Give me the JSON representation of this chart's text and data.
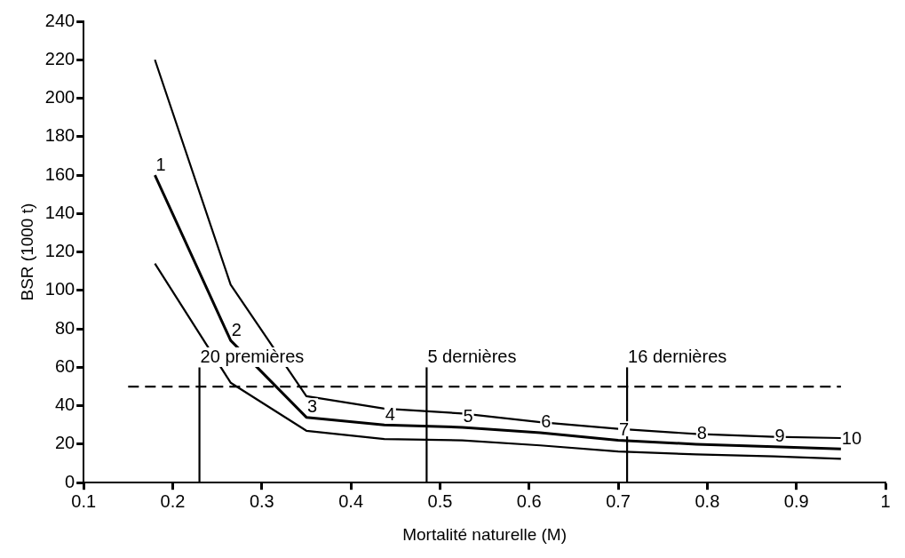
{
  "chart_data": {
    "type": "line",
    "xlabel": "Mortalité naturelle (M)",
    "ylabel": "BSR (1000 t)",
    "x": [
      0.18,
      0.265,
      0.35,
      0.4375,
      0.525,
      0.6125,
      0.7,
      0.7875,
      0.875,
      0.95
    ],
    "series": [
      {
        "color": "#000000",
        "values": [
          220,
          103,
          45,
          38.5,
          36,
          31.5,
          28,
          25.3,
          23.8,
          23.2
        ]
      },
      {
        "color": "#000000",
        "values": [
          160,
          74,
          34,
          30,
          28.8,
          26,
          22,
          20,
          18.7,
          17.5
        ]
      },
      {
        "color": "#000000",
        "values": [
          114,
          52,
          27,
          22.7,
          22,
          19.4,
          16.2,
          14.7,
          13.7,
          12.4
        ]
      },
      {
        "color": "#000000",
        "x": [
          0.15,
          0.95
        ],
        "values": [
          50,
          50
        ],
        "line_style": "dashed"
      },
      {
        "color": "#000000",
        "x": [
          0.23,
          0.23
        ],
        "values": [
          0,
          60
        ]
      },
      {
        "color": "#000000",
        "x": [
          0.485,
          0.485
        ],
        "values": [
          0,
          60
        ]
      },
      {
        "color": "#000000",
        "x": [
          0.71,
          0.71
        ],
        "values": [
          0,
          60
        ]
      }
    ],
    "annotations": [
      {
        "text": "20 premières",
        "x": 0.23,
        "y": 60
      },
      {
        "text": "5 dernières",
        "x": 0.485,
        "y": 60
      },
      {
        "text": "16 dernières",
        "x": 0.71,
        "y": 60
      },
      {
        "text": "1",
        "x": 0.18,
        "y": 160
      },
      {
        "text": "2",
        "x": 0.265,
        "y": 74
      },
      {
        "text": "3",
        "x": 0.35,
        "y": 34
      },
      {
        "text": "4",
        "x": 0.4375,
        "y": 30
      },
      {
        "text": "5",
        "x": 0.525,
        "y": 28.8
      },
      {
        "text": "6",
        "x": 0.6125,
        "y": 26
      },
      {
        "text": "7",
        "x": 0.7,
        "y": 22
      },
      {
        "text": "8",
        "x": 0.7875,
        "y": 20
      },
      {
        "text": "9",
        "x": 0.875,
        "y": 18.7
      },
      {
        "text": "10",
        "x": 0.95,
        "y": 17.5
      }
    ],
    "xlim": [
      0.1,
      1.0
    ],
    "xticks": [
      0.1,
      0.2,
      0.3,
      0.4,
      0.5,
      0.6,
      0.7,
      0.8,
      0.9,
      1
    ],
    "ylim": [
      0,
      240
    ],
    "yticks": [
      0,
      20,
      40,
      60,
      80,
      100,
      120,
      140,
      160,
      180,
      200,
      220,
      240
    ],
    "grid": false,
    "legend": false,
    "marker": "none",
    "line_style": "solid"
  }
}
